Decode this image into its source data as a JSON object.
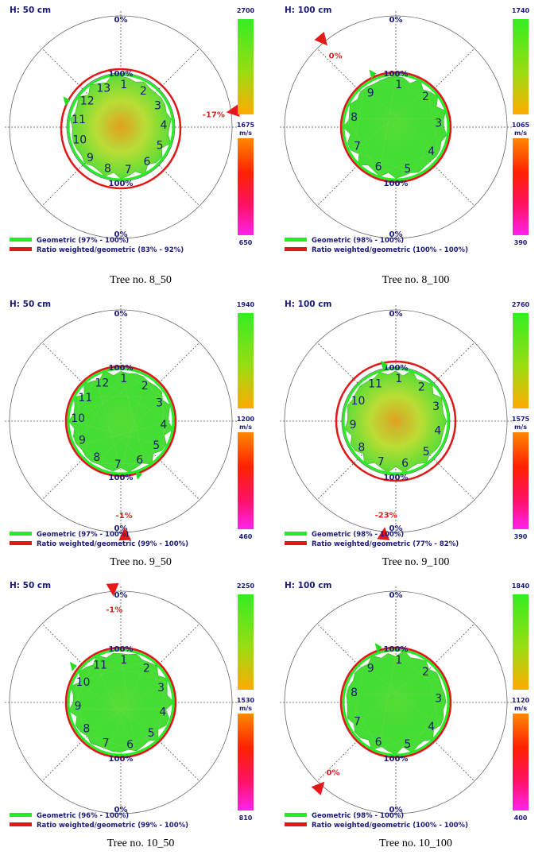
{
  "panels": [
    {
      "caption": "Tree no. 8_50",
      "height_label": "H: 50 cm",
      "scale": {
        "top": "2700",
        "mid": "1675",
        "unit": "m/s",
        "bottom": "650"
      },
      "legend": {
        "geometric": "Geometric (97% - 100%)",
        "ratio": "Ratio weighted/geometric (83% - 92%)"
      },
      "ring_labels": {
        "outer_top": "0%",
        "inner_top": "100%",
        "inner_bottom": "100%",
        "outer_bottom": "0%"
      },
      "sensors": [
        "1",
        "2",
        "3",
        "4",
        "5",
        "6",
        "7",
        "8",
        "9",
        "10",
        "11",
        "12",
        "13"
      ],
      "deformation": {
        "label": "-17%",
        "angle_deg": 82
      },
      "green_arrow_angle_deg": -62,
      "colors": {
        "geometric": "#22ee22",
        "ratio": "#e01818",
        "fill": "#44dd33"
      }
    },
    {
      "caption": "Tree no. 8_100",
      "height_label": "H: 100 cm",
      "scale": {
        "top": "1740",
        "mid": "1065",
        "unit": "m/s",
        "bottom": "390"
      },
      "legend": {
        "geometric": "Geometric (98% - 100%)",
        "ratio": "Ratio weighted/geometric (100% - 100%)"
      },
      "ring_labels": {
        "outer_top": "0%",
        "inner_top": "100%",
        "inner_bottom": "100%",
        "outer_bottom": "0%"
      },
      "sensors": [
        "1",
        "2",
        "3",
        "4",
        "5",
        "6",
        "7",
        "8",
        "9"
      ],
      "deformation": {
        "label": "0%",
        "angle_deg": -40
      },
      "green_arrow_angle_deg": -20,
      "colors": {
        "geometric": "#22ee22",
        "ratio": "#e01818",
        "fill": "#44dd33"
      }
    },
    {
      "caption": "Tree no. 9_50",
      "height_label": "H: 50 cm",
      "scale": {
        "top": "1940",
        "mid": "1200",
        "unit": "m/s",
        "bottom": "460"
      },
      "legend": {
        "geometric": "Geometric (97% - 100%)",
        "ratio": "Ratio weighted/geometric (99% - 100%)"
      },
      "ring_labels": {
        "outer_top": "0%",
        "inner_top": "100%",
        "inner_bottom": "100%",
        "outer_bottom": "0%"
      },
      "sensors": [
        "1",
        "2",
        "3",
        "4",
        "5",
        "6",
        "7",
        "8",
        "9",
        "10",
        "11",
        "12"
      ],
      "deformation": {
        "label": "-1%",
        "angle_deg": 178
      },
      "green_arrow_angle_deg": 158,
      "colors": {
        "geometric": "#22ee22",
        "ratio": "#e01818",
        "fill": "#44dd33"
      }
    },
    {
      "caption": "Tree no. 9_100",
      "height_label": "H: 100 cm",
      "scale": {
        "top": "2760",
        "mid": "1575",
        "unit": "m/s",
        "bottom": "390"
      },
      "legend": {
        "geometric": "Geometric (98% - 100%)",
        "ratio": "Ratio weighted/geometric (77% - 82%)"
      },
      "ring_labels": {
        "outer_top": "0%",
        "inner_top": "100%",
        "inner_bottom": "100%",
        "outer_bottom": "0%"
      },
      "sensors": [
        "1",
        "2",
        "3",
        "4",
        "5",
        "6",
        "7",
        "8",
        "9",
        "10",
        "11"
      ],
      "deformation": {
        "label": "-23%",
        "angle_deg": 186
      },
      "green_arrow_angle_deg": -8,
      "colors": {
        "geometric": "#22ee22",
        "ratio": "#e01818",
        "fill": "#44dd33"
      }
    },
    {
      "caption": "Tree no. 10_50",
      "height_label": "H: 50 cm",
      "scale": {
        "top": "2250",
        "mid": "1530",
        "unit": "m/s",
        "bottom": "810"
      },
      "legend": {
        "geometric": "Geometric (96% - 100%)",
        "ratio": "Ratio weighted/geometric (99% - 100%)"
      },
      "ring_labels": {
        "outer_top": "0%",
        "inner_top": "100%",
        "inner_bottom": "100%",
        "outer_bottom": "0%"
      },
      "sensors": [
        "1",
        "2",
        "3",
        "4",
        "5",
        "6",
        "7",
        "8",
        "9",
        "10",
        "11"
      ],
      "deformation": {
        "label": "-1%",
        "angle_deg": -4
      },
      "green_arrow_angle_deg": -50,
      "colors": {
        "geometric": "#22ee22",
        "ratio": "#e01818",
        "fill": "#44dd33"
      }
    },
    {
      "caption": "Tree no. 10_100",
      "height_label": "H: 100 cm",
      "scale": {
        "top": "1840",
        "mid": "1120",
        "unit": "m/s",
        "bottom": "400"
      },
      "legend": {
        "geometric": "Geometric (98% - 100%)",
        "ratio": "Ratio weighted/geometric (100% - 100%)"
      },
      "ring_labels": {
        "outer_top": "0%",
        "inner_top": "100%",
        "inner_bottom": "100%",
        "outer_bottom": "0%"
      },
      "sensors": [
        "1",
        "2",
        "3",
        "4",
        "5",
        "6",
        "7",
        "8",
        "9"
      ],
      "deformation": {
        "label": "0%",
        "angle_deg": 222
      },
      "green_arrow_angle_deg": -14,
      "colors": {
        "geometric": "#22ee22",
        "ratio": "#e01818",
        "fill": "#44dd33"
      }
    }
  ]
}
